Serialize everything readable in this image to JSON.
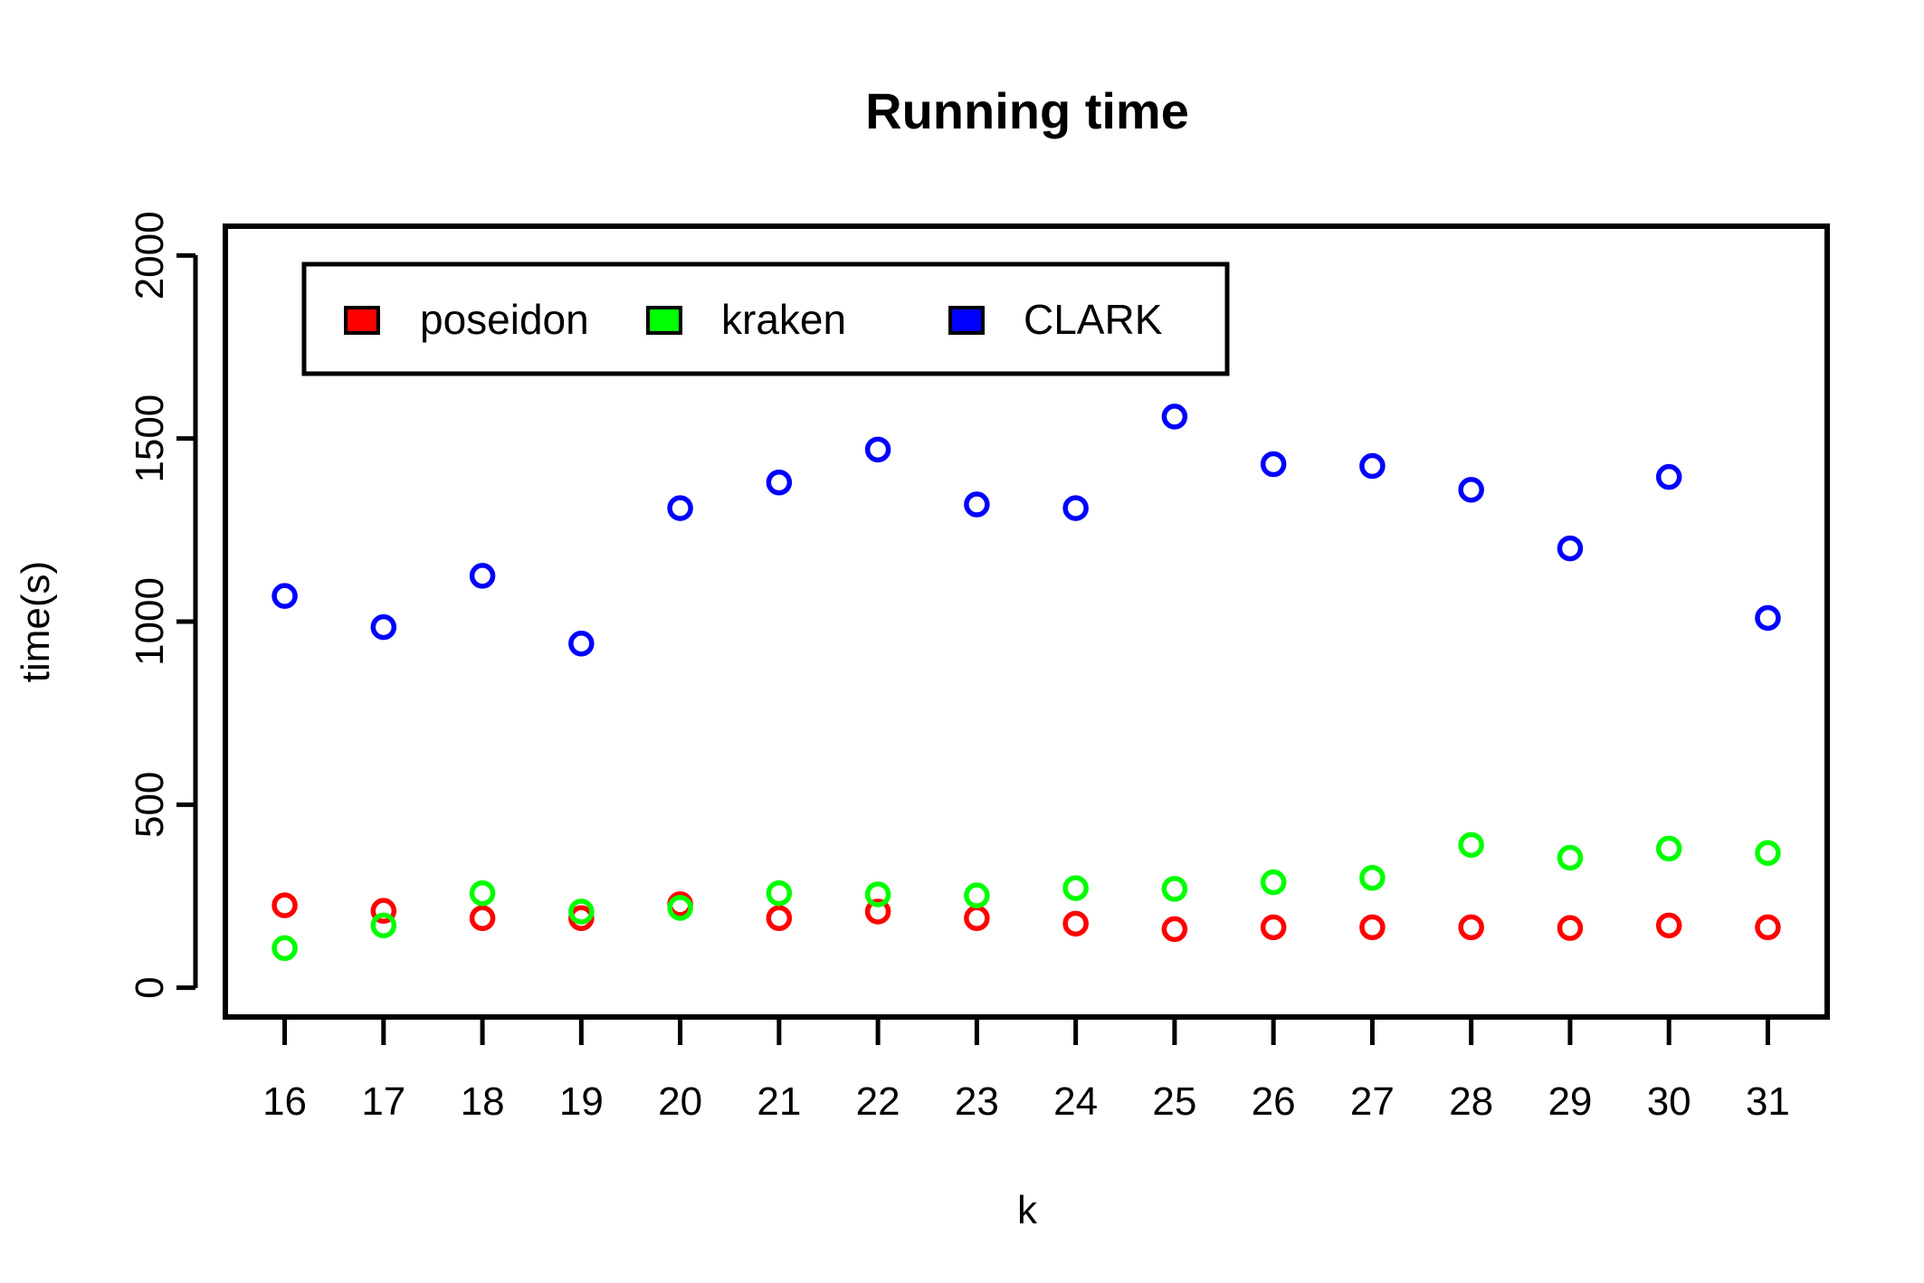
{
  "chart_data": {
    "type": "scatter",
    "title": "Running time",
    "xlabel": "k",
    "ylabel": "time(s)",
    "x": [
      16,
      17,
      18,
      19,
      20,
      21,
      22,
      23,
      24,
      25,
      26,
      27,
      28,
      29,
      30,
      31
    ],
    "xlim": [
      15.4,
      31.6
    ],
    "ylim": [
      -80,
      2080
    ],
    "yticks": [
      0,
      500,
      1000,
      1500,
      2000
    ],
    "series": [
      {
        "name": "poseidon",
        "color": "#ff0000",
        "values": [
          225,
          210,
          190,
          190,
          228,
          190,
          208,
          190,
          175,
          160,
          165,
          165,
          165,
          163,
          170,
          165
        ]
      },
      {
        "name": "kraken",
        "color": "#00ff00",
        "values": [
          108,
          170,
          258,
          208,
          218,
          258,
          255,
          252,
          272,
          270,
          288,
          300,
          390,
          355,
          380,
          368
        ]
      },
      {
        "name": "CLARK",
        "color": "#0000ff",
        "values": [
          1070,
          985,
          1125,
          940,
          1310,
          1380,
          1470,
          1320,
          1310,
          1560,
          1430,
          1425,
          1360,
          1200,
          1395,
          1010
        ]
      }
    ],
    "legend": {
      "placement": "top-left",
      "entries": [
        "poseidon",
        "kraken",
        "CLARK"
      ]
    }
  }
}
